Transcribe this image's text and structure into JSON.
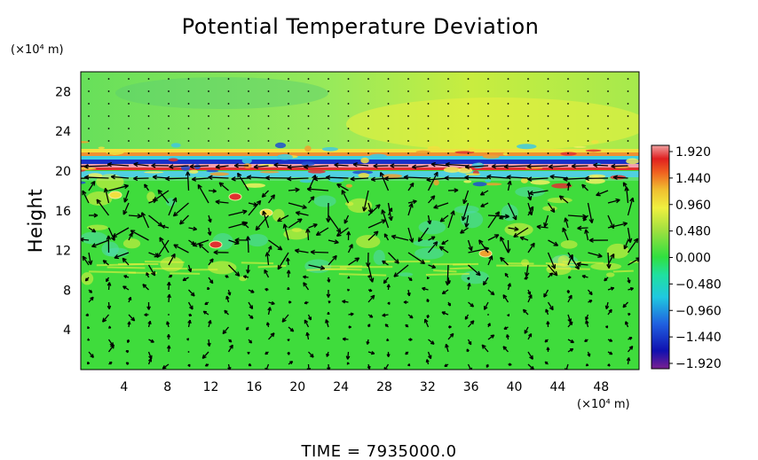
{
  "chart_data": {
    "type": "heatmap",
    "title": "Potential Temperature Deviation",
    "ylabel": "Height",
    "x_unit": "(×10⁴ m)",
    "y_unit": "(×10⁴ m)",
    "x_ticks": [
      4,
      8,
      12,
      16,
      20,
      24,
      28,
      32,
      36,
      40,
      44,
      48
    ],
    "y_ticks": [
      4,
      8,
      12,
      16,
      20,
      24,
      28
    ],
    "xlim": [
      0,
      51.5
    ],
    "ylim": [
      0,
      30
    ],
    "colorbar": {
      "ticks": [
        "1.920",
        "1.440",
        "0.960",
        "0.480",
        "0.000",
        "−0.480",
        "−0.960",
        "−1.440",
        "−1.920"
      ],
      "range": [
        -1.92,
        1.92
      ]
    },
    "overlay": "wind vector arrows",
    "time_label": "TIME  =  7935000.0",
    "colors": {
      "positive_max": "#ff4040",
      "zero": "#40e040",
      "negative_max": "#6000a0"
    }
  }
}
